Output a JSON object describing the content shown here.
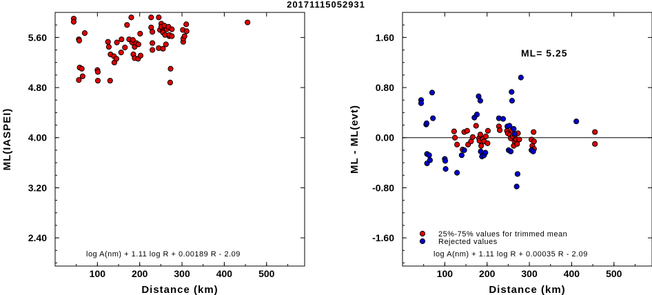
{
  "title": "20171115052931",
  "colors": {
    "accepted": "#e00000",
    "rejected": "#0000cc",
    "stroke": "#000000"
  },
  "chart_data": [
    {
      "type": "scatter",
      "xlabel": "Distance (km)",
      "ylabel": "ML(IASPEI)",
      "xlim": [
        0,
        590
      ],
      "ylim": [
        1.95,
        6.0
      ],
      "xticks": [
        100,
        200,
        300,
        400,
        500
      ],
      "yticks": [
        2.4,
        3.2,
        4.0,
        4.8,
        5.6
      ],
      "ytick_labels": [
        "2.40",
        "3.20",
        "4.00",
        "4.80",
        "5.60"
      ],
      "formula": "log A(nm) + 1.11 log R + 0.00189 R - 2.09",
      "grid": false,
      "series": [
        {
          "kind": "accepted",
          "points": [
            [
              44,
              5.9
            ],
            [
              44,
              5.85
            ],
            [
              56,
              5.57
            ],
            [
              57,
              5.55
            ],
            [
              58,
              5.12
            ],
            [
              63,
              5.1
            ],
            [
              65,
              4.98
            ],
            [
              70,
              5.67
            ],
            [
              56,
              4.92
            ],
            [
              100,
              5.08
            ],
            [
              101,
              5.05
            ],
            [
              101,
              4.91
            ],
            [
              125,
              5.53
            ],
            [
              127,
              5.45
            ],
            [
              131,
              5.33
            ],
            [
              130,
              4.91
            ],
            [
              139,
              5.3
            ],
            [
              140,
              5.2
            ],
            [
              145,
              5.26
            ],
            [
              146,
              5.52
            ],
            [
              157,
              5.57
            ],
            [
              156,
              5.36
            ],
            [
              165,
              5.44
            ],
            [
              170,
              5.8
            ],
            [
              175,
              5.57
            ],
            [
              180,
              5.92
            ],
            [
              182,
              5.52
            ],
            [
              184,
              5.56
            ],
            [
              185,
              5.33
            ],
            [
              188,
              5.45
            ],
            [
              188,
              5.27
            ],
            [
              192,
              5.51
            ],
            [
              196,
              5.26
            ],
            [
              197,
              5.49
            ],
            [
              201,
              5.66
            ],
            [
              202,
              5.31
            ],
            [
              227,
              5.92
            ],
            [
              227,
              5.76
            ],
            [
              230,
              5.69
            ],
            [
              230,
              5.4
            ],
            [
              230,
              5.51
            ],
            [
              245,
              5.92
            ],
            [
              245,
              5.43
            ],
            [
              248,
              5.72
            ],
            [
              251,
              5.82
            ],
            [
              251,
              5.77
            ],
            [
              255,
              5.7
            ],
            [
              255,
              5.68
            ],
            [
              255,
              5.42
            ],
            [
              258,
              5.79
            ],
            [
              260,
              5.64
            ],
            [
              262,
              5.49
            ],
            [
              264,
              5.73
            ],
            [
              268,
              5.77
            ],
            [
              270,
              5.62
            ],
            [
              270,
              5.64
            ],
            [
              272,
              4.88
            ],
            [
              273,
              5.1
            ],
            [
              276,
              5.73
            ],
            [
              276,
              5.62
            ],
            [
              302,
              5.72
            ],
            [
              303,
              5.53
            ],
            [
              303,
              5.58
            ],
            [
              306,
              5.62
            ],
            [
              310,
              5.81
            ],
            [
              311,
              5.7
            ],
            [
              455,
              5.84
            ]
          ]
        }
      ]
    },
    {
      "type": "scatter",
      "xlabel": "Distance (km)",
      "ylabel": "ML - ML(evt)",
      "xlim": [
        0,
        590
      ],
      "ylim": [
        -2.05,
        2.0
      ],
      "xticks": [
        100,
        200,
        300,
        400,
        500
      ],
      "yticks": [
        -1.6,
        -0.8,
        0.0,
        0.8,
        1.6
      ],
      "ytick_labels": [
        "-1.60",
        "-0.80",
        "0.00",
        "0.80",
        "1.60"
      ],
      "zero_line": 0.0,
      "annotation": "ML= 5.25",
      "formula": "log A(nm) + 1.11 log R + 0.00035 R - 2.09",
      "legend": {
        "placement": "bottom-left",
        "items": [
          "25%-75% values for trimmed mean",
          "Rejected values"
        ]
      },
      "grid": false,
      "series": [
        {
          "name": "25%-75% values for trimmed mean",
          "kind": "accepted",
          "points": [
            [
              122,
              0.1
            ],
            [
              124,
              0.0
            ],
            [
              129,
              -0.11
            ],
            [
              142,
              -0.19
            ],
            [
              146,
              0.09
            ],
            [
              153,
              0.11
            ],
            [
              155,
              -0.11
            ],
            [
              162,
              -0.06
            ],
            [
              166,
              0.01
            ],
            [
              174,
              0.19
            ],
            [
              181,
              -0.01
            ],
            [
              182,
              -0.05
            ],
            [
              184,
              0.05
            ],
            [
              186,
              -0.13
            ],
            [
              190,
              -0.02
            ],
            [
              193,
              -0.06
            ],
            [
              197,
              0.02
            ],
            [
              201,
              -0.09
            ],
            [
              202,
              0.11
            ],
            [
              228,
              0.18
            ],
            [
              230,
              0.12
            ],
            [
              247,
              0.11
            ],
            [
              249,
              0.07
            ],
            [
              254,
              0.05
            ],
            [
              256,
              -0.01
            ],
            [
              259,
              0.11
            ],
            [
              261,
              0.02
            ],
            [
              263,
              -0.13
            ],
            [
              265,
              -0.06
            ],
            [
              266,
              0.04
            ],
            [
              269,
              -0.03
            ],
            [
              271,
              -0.1
            ],
            [
              273,
              0.07
            ],
            [
              276,
              -0.03
            ],
            [
              305,
              -0.03
            ],
            [
              307,
              -0.13
            ],
            [
              310,
              0.09
            ],
            [
              311,
              -0.06
            ],
            [
              311,
              -0.18
            ],
            [
              455,
              0.09
            ],
            [
              455,
              -0.1
            ]
          ]
        },
        {
          "name": "Rejected values",
          "kind": "rejected",
          "points": [
            [
              44,
              0.6
            ],
            [
              44,
              0.55
            ],
            [
              56,
              0.21
            ],
            [
              57,
              0.23
            ],
            [
              58,
              -0.26
            ],
            [
              58,
              -0.41
            ],
            [
              63,
              -0.28
            ],
            [
              65,
              -0.36
            ],
            [
              70,
              0.72
            ],
            [
              72,
              0.31
            ],
            [
              100,
              -0.34
            ],
            [
              101,
              -0.37
            ],
            [
              102,
              -0.5
            ],
            [
              129,
              -0.56
            ],
            [
              140,
              -0.28
            ],
            [
              146,
              -0.2
            ],
            [
              170,
              0.32
            ],
            [
              176,
              0.37
            ],
            [
              180,
              0.66
            ],
            [
              184,
              0.59
            ],
            [
              185,
              -0.22
            ],
            [
              188,
              -0.3
            ],
            [
              193,
              -0.28
            ],
            [
              196,
              -0.24
            ],
            [
              228,
              0.31
            ],
            [
              238,
              0.3
            ],
            [
              248,
              0.18
            ],
            [
              251,
              -0.2
            ],
            [
              253,
              0.19
            ],
            [
              256,
              -0.22
            ],
            [
              258,
              0.73
            ],
            [
              259,
              0.59
            ],
            [
              263,
              0.14
            ],
            [
              265,
              0.06
            ],
            [
              270,
              -0.78
            ],
            [
              272,
              -0.58
            ],
            [
              280,
              0.96
            ],
            [
              305,
              -0.2
            ],
            [
              309,
              -0.22
            ],
            [
              411,
              0.26
            ]
          ]
        }
      ]
    }
  ]
}
